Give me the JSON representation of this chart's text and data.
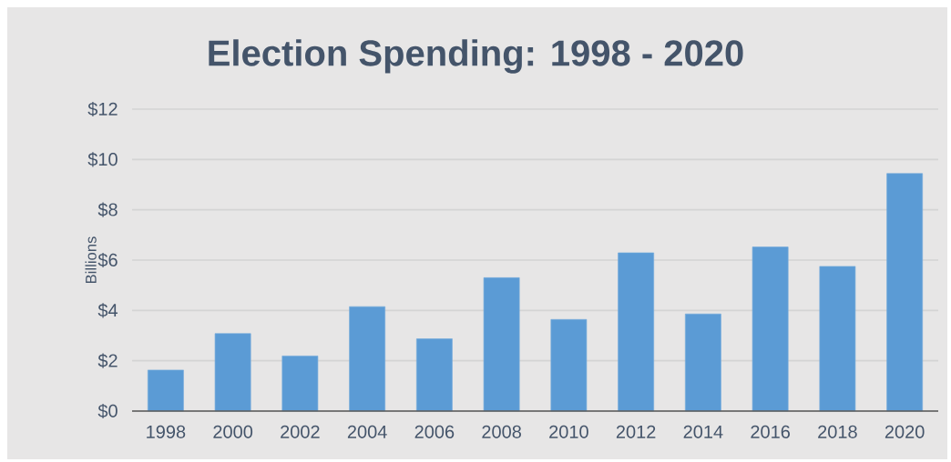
{
  "chart_data": {
    "type": "bar",
    "title": "Election Spending: 1998 - 2020",
    "ylabel": "Billions",
    "categories": [
      "1998",
      "2000",
      "2002",
      "2004",
      "2006",
      "2008",
      "2010",
      "2012",
      "2014",
      "2016",
      "2018",
      "2020"
    ],
    "values": [
      1.63,
      3.08,
      2.19,
      4.15,
      2.87,
      5.3,
      3.64,
      6.29,
      3.86,
      6.52,
      5.75,
      9.44
    ],
    "color": "#5b9bd5",
    "ylim": [
      0,
      12
    ],
    "yticks": [
      {
        "value": 0,
        "label": "$0"
      },
      {
        "value": 2,
        "label": "$2"
      },
      {
        "value": 4,
        "label": "$4"
      },
      {
        "value": 6,
        "label": "$6"
      },
      {
        "value": 8,
        "label": "$8"
      },
      {
        "value": 10,
        "label": "$10"
      },
      {
        "value": 12,
        "label": "$12"
      }
    ],
    "grid": "y"
  }
}
